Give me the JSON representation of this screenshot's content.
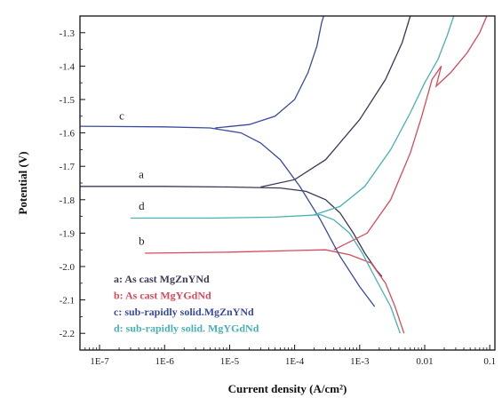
{
  "chart_data": {
    "type": "line",
    "xlabel": "Current density (A/cm²)",
    "ylabel": "Potential (V)",
    "x_scale": "log",
    "xlim": [
      5e-08,
      0.12
    ],
    "ylim": [
      -2.25,
      -1.25
    ],
    "x_ticks": [
      {
        "value": 1e-07,
        "label": "1E-7"
      },
      {
        "value": 1e-06,
        "label": "1E-6"
      },
      {
        "value": 1e-05,
        "label": "1E-5"
      },
      {
        "value": 0.0001,
        "label": "1E-4"
      },
      {
        "value": 0.001,
        "label": "1E-3"
      },
      {
        "value": 0.01,
        "label": "0.01"
      },
      {
        "value": 0.1,
        "label": "0.1"
      }
    ],
    "y_ticks": [
      {
        "value": -1.3,
        "label": "-1.3"
      },
      {
        "value": -1.4,
        "label": "-1.4"
      },
      {
        "value": -1.5,
        "label": "-1.5"
      },
      {
        "value": -1.6,
        "label": "-1.6"
      },
      {
        "value": -1.7,
        "label": "-1.7"
      },
      {
        "value": -1.8,
        "label": "-1.8"
      },
      {
        "value": -1.9,
        "label": "-1.9"
      },
      {
        "value": -2.0,
        "label": "-2.0"
      },
      {
        "value": -2.1,
        "label": "-2.1"
      },
      {
        "value": -2.2,
        "label": "-2.2"
      }
    ],
    "grid": false,
    "legend_position": "bottom-left",
    "series": [
      {
        "name": "a: As cast MgZnYNd",
        "tag": "a",
        "color": "#3a3a55",
        "points": [
          [
            5e-08,
            -1.76
          ],
          [
            1e-06,
            -1.76
          ],
          [
            1e-05,
            -1.762
          ],
          [
            6e-05,
            -1.765
          ],
          [
            0.00015,
            -1.775
          ],
          [
            0.0003,
            -1.8
          ],
          [
            0.0005,
            -1.84
          ],
          [
            0.0008,
            -1.9
          ],
          [
            0.0012,
            -1.96
          ],
          [
            0.0018,
            -2.01
          ],
          [
            0.0022,
            -2.03
          ]
        ],
        "anodic": [
          [
            3e-05,
            -1.762
          ],
          [
            0.0001,
            -1.74
          ],
          [
            0.0003,
            -1.68
          ],
          [
            0.001,
            -1.56
          ],
          [
            0.0025,
            -1.44
          ],
          [
            0.0045,
            -1.33
          ],
          [
            0.006,
            -1.25
          ]
        ]
      },
      {
        "name": "b: As cast MgYGdNd",
        "tag": "b",
        "color": "#d84a5a",
        "points": [
          [
            5e-07,
            -1.96
          ],
          [
            1e-05,
            -1.957
          ],
          [
            0.0001,
            -1.952
          ],
          [
            0.0003,
            -1.95
          ],
          [
            0.0007,
            -1.965
          ],
          [
            0.0015,
            -1.99
          ],
          [
            0.0025,
            -2.05
          ],
          [
            0.0035,
            -2.12
          ],
          [
            0.0048,
            -2.2
          ]
        ],
        "anodic": [
          [
            0.0004,
            -1.95
          ],
          [
            0.0013,
            -1.9
          ],
          [
            0.003,
            -1.8
          ],
          [
            0.006,
            -1.66
          ],
          [
            0.009,
            -1.55
          ],
          [
            0.013,
            -1.44
          ],
          [
            0.018,
            -1.4
          ],
          [
            0.015,
            -1.46
          ],
          [
            0.025,
            -1.42
          ],
          [
            0.045,
            -1.36
          ],
          [
            0.07,
            -1.3
          ],
          [
            0.09,
            -1.25
          ]
        ]
      },
      {
        "name": "c: sub-rapidly solid.MgZnYNd",
        "tag": "c",
        "color": "#3a4aa0",
        "points": [
          [
            5e-08,
            -1.58
          ],
          [
            1e-06,
            -1.582
          ],
          [
            5e-06,
            -1.585
          ],
          [
            1.5e-05,
            -1.6
          ],
          [
            3e-05,
            -1.63
          ],
          [
            6e-05,
            -1.68
          ],
          [
            0.00012,
            -1.76
          ],
          [
            0.00025,
            -1.86
          ],
          [
            0.0005,
            -1.97
          ],
          [
            0.001,
            -2.06
          ],
          [
            0.0017,
            -2.12
          ]
        ],
        "anodic": [
          [
            6e-06,
            -1.585
          ],
          [
            2e-05,
            -1.575
          ],
          [
            5e-05,
            -1.55
          ],
          [
            0.0001,
            -1.5
          ],
          [
            0.00016,
            -1.42
          ],
          [
            0.00022,
            -1.34
          ],
          [
            0.00026,
            -1.27
          ],
          [
            0.00028,
            -1.25
          ]
        ]
      },
      {
        "name": "d: sub-rapidly solid. MgYGdNd",
        "tag": "d",
        "color": "#4ab0b0",
        "points": [
          [
            3e-07,
            -1.855
          ],
          [
            5e-06,
            -1.855
          ],
          [
            5e-05,
            -1.852
          ],
          [
            0.00025,
            -1.845
          ],
          [
            0.0004,
            -1.86
          ],
          [
            0.0007,
            -1.9
          ],
          [
            0.0011,
            -1.96
          ],
          [
            0.0018,
            -2.04
          ],
          [
            0.003,
            -2.12
          ],
          [
            0.0042,
            -2.2
          ]
        ],
        "anodic": [
          [
            0.0002,
            -1.845
          ],
          [
            0.0005,
            -1.82
          ],
          [
            0.0012,
            -1.76
          ],
          [
            0.003,
            -1.65
          ],
          [
            0.006,
            -1.54
          ],
          [
            0.01,
            -1.45
          ],
          [
            0.016,
            -1.38
          ],
          [
            0.022,
            -1.31
          ],
          [
            0.028,
            -1.25
          ]
        ]
      }
    ],
    "curve_tags": [
      {
        "tag": "c",
        "x": 2e-07,
        "y": -1.56
      },
      {
        "tag": "a",
        "x": 4e-07,
        "y": -1.735
      },
      {
        "tag": "d",
        "x": 4e-07,
        "y": -1.83
      },
      {
        "tag": "b",
        "x": 4e-07,
        "y": -1.935
      }
    ]
  }
}
